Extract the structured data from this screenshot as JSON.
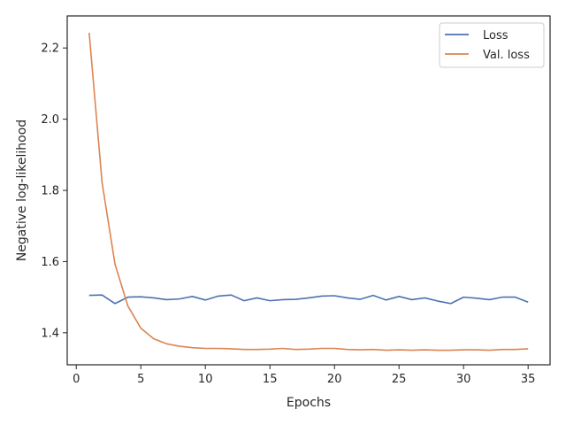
{
  "chart_data": {
    "type": "line",
    "xlabel": "Epochs",
    "ylabel": "Negative log-likelihood",
    "xlim": [
      -0.7,
      36.7
    ],
    "ylim": [
      1.31,
      2.29
    ],
    "xticks": [
      0,
      5,
      10,
      15,
      20,
      25,
      30,
      35
    ],
    "xtick_labels": [
      "0",
      "5",
      "10",
      "15",
      "20",
      "25",
      "30",
      "35"
    ],
    "yticks": [
      1.4,
      1.6,
      1.8,
      2.0,
      2.2
    ],
    "ytick_labels": [
      "1.4",
      "1.6",
      "1.8",
      "2.0",
      "2.2"
    ],
    "grid": false,
    "legend_position": "top-right",
    "x": [
      1,
      2,
      3,
      4,
      5,
      6,
      7,
      8,
      9,
      10,
      11,
      12,
      13,
      14,
      15,
      16,
      17,
      18,
      19,
      20,
      21,
      22,
      23,
      24,
      25,
      26,
      27,
      28,
      29,
      30,
      31,
      32,
      33,
      34,
      35
    ],
    "series": [
      {
        "name": "Loss",
        "color": "#4c72b0",
        "values": [
          1.505,
          1.506,
          1.482,
          1.5,
          1.501,
          1.498,
          1.493,
          1.495,
          1.502,
          1.492,
          1.503,
          1.506,
          1.49,
          1.498,
          1.49,
          1.493,
          1.494,
          1.498,
          1.503,
          1.504,
          1.498,
          1.494,
          1.505,
          1.492,
          1.502,
          1.493,
          1.498,
          1.489,
          1.482,
          1.5,
          1.497,
          1.493,
          1.5,
          1.5,
          1.486
        ]
      },
      {
        "name": "Val. loss",
        "color": "#dd8452",
        "values": [
          2.243,
          1.822,
          1.593,
          1.475,
          1.413,
          1.383,
          1.369,
          1.362,
          1.358,
          1.356,
          1.356,
          1.355,
          1.353,
          1.353,
          1.354,
          1.356,
          1.353,
          1.354,
          1.356,
          1.356,
          1.353,
          1.352,
          1.353,
          1.351,
          1.352,
          1.351,
          1.352,
          1.351,
          1.351,
          1.352,
          1.352,
          1.351,
          1.353,
          1.353,
          1.355
        ]
      }
    ]
  }
}
